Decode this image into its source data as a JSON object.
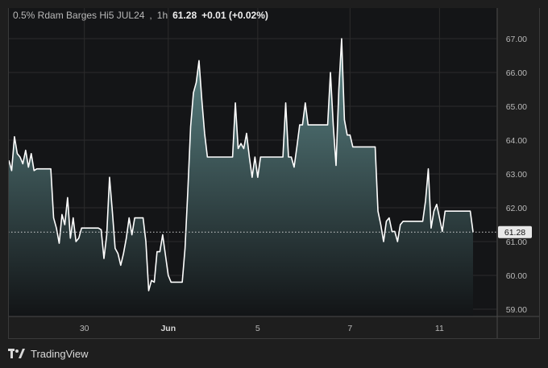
{
  "header": {
    "symbol": "0.5% Rdam Barges Hi5 JUL24",
    "interval": "1h",
    "price": "61.28",
    "change": "+0.01 (+0.02%)"
  },
  "brand": {
    "label": "TradingView",
    "icon": "tradingview-logo-icon"
  },
  "price_tag": "61.28",
  "colors": {
    "background": "#1e1e1e",
    "line": "#ffffff",
    "area_top": "#5f8a8b",
    "area_bottom": "#121416",
    "grid": "#2c2c2c"
  },
  "chart_data": {
    "type": "area",
    "ylim": [
      58.8,
      67.9
    ],
    "y_ticks": [
      "67.00",
      "66.00",
      "65.00",
      "64.00",
      "63.00",
      "62.00",
      "61.00",
      "60.00",
      "59.00"
    ],
    "y_tick_values": [
      67,
      66,
      65,
      64,
      63,
      62,
      61,
      60,
      59
    ],
    "x_ticks": [
      {
        "label": "30",
        "i": 27,
        "bold": false
      },
      {
        "label": "Jun",
        "i": 57,
        "bold": true
      },
      {
        "label": "5",
        "i": 89,
        "bold": false
      },
      {
        "label": "7",
        "i": 122,
        "bold": false
      },
      {
        "label": "11",
        "i": 154,
        "bold": false
      }
    ],
    "last_value": 61.28,
    "values": [
      63.4,
      63.1,
      64.1,
      63.6,
      63.5,
      63.3,
      63.7,
      63.2,
      63.6,
      63.1,
      63.15,
      63.15,
      63.15,
      63.15,
      63.15,
      63.15,
      61.7,
      61.4,
      60.95,
      61.8,
      61.5,
      62.3,
      61.1,
      61.7,
      61.0,
      61.1,
      61.4,
      61.4,
      61.4,
      61.4,
      61.4,
      61.4,
      61.4,
      61.35,
      60.5,
      61.2,
      62.9,
      61.9,
      60.8,
      60.65,
      60.3,
      60.65,
      61.1,
      61.7,
      61.2,
      61.7,
      61.7,
      61.7,
      61.7,
      61.0,
      59.55,
      59.85,
      59.8,
      60.7,
      60.7,
      61.2,
      60.6,
      60.0,
      59.8,
      59.8,
      59.8,
      59.8,
      59.8,
      60.8,
      62.5,
      64.4,
      65.4,
      65.7,
      66.35,
      65.2,
      64.2,
      63.5,
      63.5,
      63.5,
      63.5,
      63.5,
      63.5,
      63.5,
      63.5,
      63.5,
      63.5,
      65.1,
      63.75,
      63.9,
      63.75,
      64.2,
      63.5,
      62.9,
      63.5,
      62.9,
      63.5,
      63.5,
      63.5,
      63.5,
      63.5,
      63.5,
      63.5,
      63.5,
      63.5,
      65.1,
      63.5,
      63.5,
      63.2,
      63.8,
      64.45,
      64.45,
      65.1,
      64.45,
      64.45,
      64.45,
      64.45,
      64.45,
      64.45,
      64.45,
      64.45,
      66.0,
      64.45,
      63.25,
      65.5,
      67.0,
      64.6,
      64.15,
      64.15,
      63.8,
      63.8,
      63.8,
      63.8,
      63.8,
      63.8,
      63.8,
      63.8,
      63.8,
      61.9,
      61.5,
      61.0,
      61.6,
      61.7,
      61.3,
      61.3,
      61.0,
      61.5,
      61.6,
      61.6,
      61.6,
      61.6,
      61.6,
      61.6,
      61.6,
      61.6,
      62.2,
      63.15,
      61.4,
      61.9,
      62.1,
      61.7,
      61.3,
      61.9,
      61.9,
      61.9,
      61.9,
      61.9,
      61.9,
      61.9,
      61.9,
      61.9,
      61.9,
      61.28
    ]
  }
}
